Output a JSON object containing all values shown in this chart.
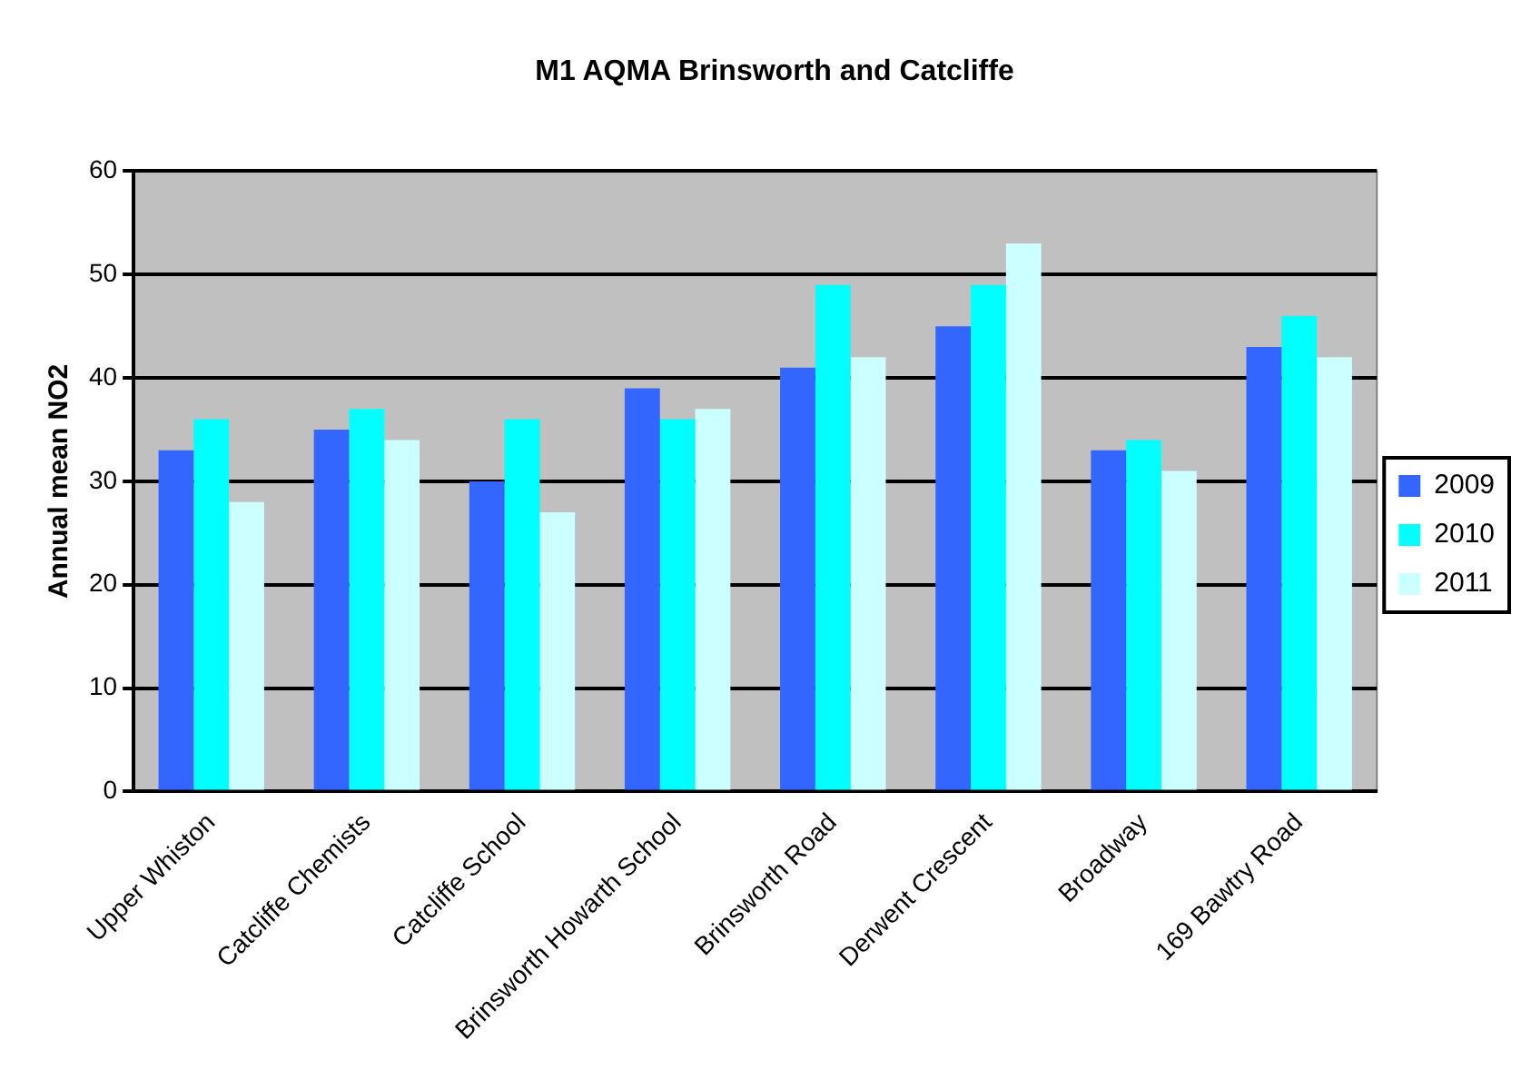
{
  "chart_data": {
    "type": "bar",
    "title": "M1 AQMA Brinsworth and Catcliffe",
    "ylabel": "Annual mean NO2",
    "categories": [
      "Upper Whiston",
      "Catcliffe Chemists",
      "Catcliffe School",
      "Brinsworth Howarth School",
      "Brinsworth Road",
      "Derwent Crescent",
      "Broadway",
      "169 Bawtry Road"
    ],
    "series": [
      {
        "name": "2009",
        "color": "#3366ff",
        "values": [
          33,
          35,
          30,
          39,
          41,
          45,
          33,
          43
        ]
      },
      {
        "name": "2010",
        "color": "#00ffff",
        "values": [
          36,
          37,
          36,
          36,
          49,
          49,
          34,
          46
        ]
      },
      {
        "name": "2011",
        "color": "#ccffff",
        "values": [
          28,
          34,
          27,
          37,
          42,
          53,
          31,
          42
        ]
      }
    ],
    "ylim": [
      0,
      60
    ],
    "yticks": [
      0,
      10,
      20,
      30,
      40,
      50,
      60
    ],
    "grid": "y",
    "legend": "right"
  }
}
